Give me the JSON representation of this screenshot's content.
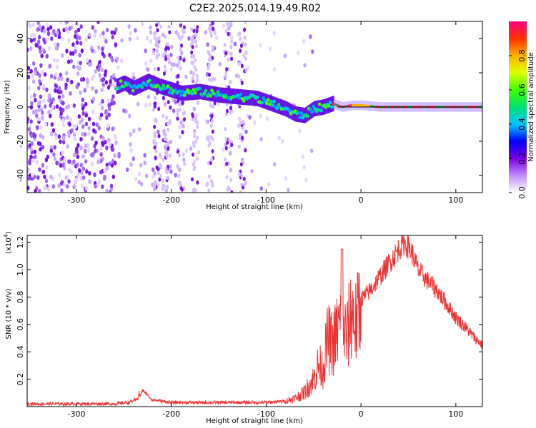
{
  "title": "C2E2.2025.014.19.49.R02",
  "chart_data": [
    {
      "type": "heatmap",
      "xlabel": "Height of straight line (km)",
      "ylabel": "Frequency (Hz)",
      "xlim": [
        -352,
        128
      ],
      "ylim": [
        -50,
        50
      ],
      "xticks": [
        -300,
        -200,
        -100,
        0,
        100
      ],
      "yticks": [
        -40,
        -20,
        0,
        20,
        40
      ],
      "colorbar": {
        "label": "Normalized spectral amplitude",
        "range": [
          0,
          1
        ],
        "ticks": [
          "0.0",
          "0.2",
          "0.4",
          "0.6",
          "0.8"
        ],
        "colors": [
          "#ffffff",
          "#c08cff",
          "#7a00e0",
          "#0000ff",
          "#00c8ff",
          "#00e070",
          "#40ff00",
          "#e0ff00",
          "#ffb000",
          "#ff3000",
          "#ff0080"
        ]
      },
      "ridge": {
        "x": [
          -258,
          -250,
          -240,
          -225,
          -212,
          -200,
          -190,
          -170,
          -150,
          -130,
          -110,
          -95,
          -80,
          -70,
          -60,
          -50,
          -40,
          -30,
          -20,
          -10,
          0,
          20,
          60,
          100,
          128
        ],
        "frequency": [
          12,
          14,
          11,
          15,
          12,
          10,
          8,
          9,
          7,
          6,
          5,
          2,
          -1,
          -4,
          -5,
          -1,
          0,
          2,
          0,
          1,
          1,
          0,
          0,
          0,
          0
        ]
      }
    },
    {
      "type": "line",
      "xlabel": "Height of straight line (km)",
      "ylabel": "SNR (10 * v/v)",
      "scale_label": "(x10",
      "scale_exp": "4",
      "xlim": [
        -352,
        128
      ],
      "ylim": [
        0,
        1.25
      ],
      "xticks": [
        -300,
        -200,
        -100,
        0,
        100
      ],
      "yticks": [
        "0.2",
        "0.4",
        "0.6",
        "0.8",
        "1.0",
        "1.2"
      ],
      "series": [
        {
          "color": "#ee3333",
          "x": [
            -352,
            -300,
            -260,
            -245,
            -235,
            -230,
            -220,
            -200,
            -160,
            -120,
            -100,
            -80,
            -70,
            -60,
            -50,
            -45,
            -40,
            -35,
            -30,
            -25,
            -20,
            -15,
            -10,
            -5,
            0,
            10,
            20,
            30,
            40,
            45,
            50,
            55,
            60,
            70,
            80,
            90,
            100,
            110,
            120,
            128
          ],
          "y": [
            0.02,
            0.02,
            0.02,
            0.03,
            0.06,
            0.12,
            0.05,
            0.03,
            0.03,
            0.03,
            0.03,
            0.04,
            0.06,
            0.1,
            0.2,
            0.3,
            0.28,
            0.5,
            0.45,
            0.55,
            0.62,
            0.5,
            0.7,
            0.6,
            0.78,
            0.85,
            0.95,
            1.05,
            1.15,
            1.2,
            1.17,
            1.1,
            1.0,
            0.92,
            0.85,
            0.75,
            0.65,
            0.58,
            0.5,
            0.45
          ]
        }
      ]
    }
  ]
}
